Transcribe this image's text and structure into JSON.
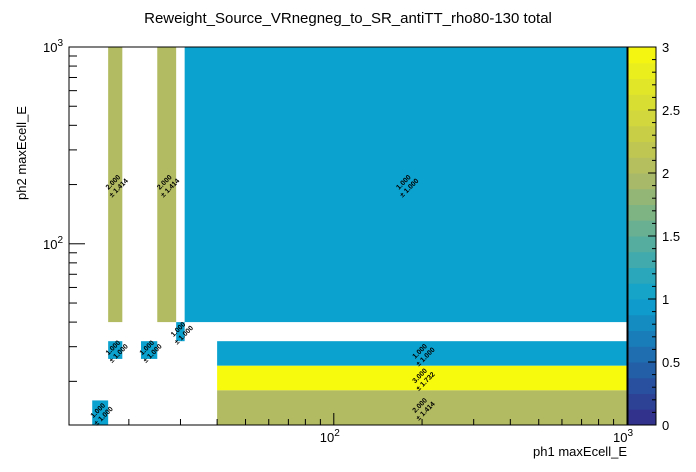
{
  "chart_data": {
    "type": "heatmap",
    "title": "Reweight_Source_VRnegneg_to_SR_antiTT_rho80-130 total",
    "xlabel": "ph1 maxEcell_E",
    "ylabel": "ph2 maxEcell_E",
    "x_scale": "log",
    "y_scale": "log",
    "xlim": [
      12.5,
      1000
    ],
    "ylim": [
      12,
      1000
    ],
    "zlim": [
      0,
      3
    ],
    "x_ticks": [
      {
        "value": 100,
        "base": "10",
        "exp": "2"
      },
      {
        "value": 1000,
        "base": "10",
        "exp": "3"
      }
    ],
    "y_ticks": [
      {
        "value": 100,
        "base": "10",
        "exp": "2"
      },
      {
        "value": 1000,
        "base": "10",
        "exp": "3"
      }
    ],
    "palette_ticks": [
      "0",
      "0.5",
      "1",
      "1.5",
      "2",
      "2.5",
      "3"
    ],
    "cells": [
      {
        "x0": 15,
        "x1": 17,
        "y0": 12,
        "y1": 16,
        "value": 1.0,
        "label": "1.000",
        "error": "± 1.000"
      },
      {
        "x0": 17,
        "x1": 19,
        "y0": 26,
        "y1": 32,
        "value": 1.0,
        "label": "1.000",
        "error": "± 1.000"
      },
      {
        "x0": 22,
        "x1": 25,
        "y0": 26,
        "y1": 32,
        "value": 1.0,
        "label": "1.000",
        "error": "± 1.000"
      },
      {
        "x0": 29,
        "x1": 31,
        "y0": 32,
        "y1": 40,
        "value": 1.0,
        "label": "1.000",
        "error": "± 1.000"
      },
      {
        "x0": 17,
        "x1": 19,
        "y0": 40,
        "y1": 1000,
        "value": 2.0,
        "label": "2.000",
        "error": "± 1.414"
      },
      {
        "x0": 25,
        "x1": 29,
        "y0": 40,
        "y1": 1000,
        "value": 2.0,
        "label": "2.000",
        "error": "± 1.414"
      },
      {
        "x0": 31,
        "x1": 1000,
        "y0": 40,
        "y1": 1000,
        "value": 1.0,
        "label": "1.000",
        "error": "± 1.000"
      },
      {
        "x0": 40,
        "x1": 1000,
        "y0": 24,
        "y1": 32,
        "value": 1.0,
        "label": "1.000",
        "error": "± 1.000"
      },
      {
        "x0": 40,
        "x1": 1000,
        "y0": 18,
        "y1": 24,
        "value": 3.0,
        "label": "3.000",
        "error": "± 1.732"
      },
      {
        "x0": 40,
        "x1": 1000,
        "y0": 12,
        "y1": 18,
        "value": 2.0,
        "label": "2.000",
        "error": "± 1.414"
      }
    ],
    "colors": {
      "0": "#352a87",
      "1": "#0ca2cf",
      "2": "#b2bb62",
      "3": "#f8fa0d"
    }
  }
}
